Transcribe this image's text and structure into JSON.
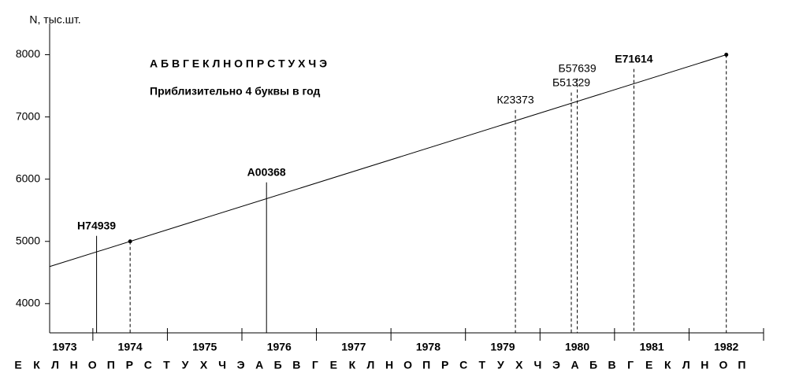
{
  "chart_data": {
    "type": "line",
    "ylabel": "N, тыс.шт.",
    "xlim": [
      1972.92,
      1982.5
    ],
    "ylim": [
      3530,
      8500
    ],
    "yticks": [
      4000,
      5000,
      6000,
      7000,
      8000
    ],
    "xticks": [
      1973,
      1974,
      1975,
      1976,
      1977,
      1978,
      1979,
      1980,
      1981,
      1982
    ],
    "xminorticks": [
      1973.5,
      1974.5,
      1975.5,
      1976.5,
      1977.5,
      1978.5,
      1979.5,
      1980.5,
      1981.5,
      1982.5
    ],
    "line": {
      "x": [
        1972.92,
        1982
      ],
      "y": [
        4595,
        8000
      ],
      "color": "#000000"
    },
    "points": {
      "x": [
        1974,
        1982
      ],
      "y": [
        5000,
        8000
      ],
      "color": "#000000"
    },
    "notes": [
      "А Б В Г Е К Л Н О П Р С Т У Х Ч Э",
      "Приблизительно 4 буквы в год"
    ],
    "annotations": [
      {
        "text": "Н74939",
        "x": 1973.55,
        "y": 5089,
        "bold": true,
        "dashed": false
      },
      {
        "text": "А00368",
        "x": 1975.83,
        "y": 5949,
        "bold": true,
        "dashed": false
      },
      {
        "text": "К23373",
        "x": 1979.17,
        "y": 7114,
        "bold": false,
        "dashed": true
      },
      {
        "text": "Б51329",
        "x": 1979.92,
        "y": 7392,
        "bold": false,
        "dashed": true
      },
      {
        "text": "Б57639",
        "x": 1980.0,
        "y": 7620,
        "bold": false,
        "dashed": true
      },
      {
        "text": "Е71614",
        "x": 1980.76,
        "y": 7772,
        "bold": true,
        "dashed": true
      }
    ],
    "letters": [
      "Е",
      "К",
      "Л",
      "Н",
      "О",
      "П",
      "Р",
      "С",
      "Т",
      "У",
      "Х",
      "Ч",
      "Э",
      "А",
      "Б",
      "В",
      "Г",
      "Е",
      "К",
      "Л",
      "Н",
      "О",
      "П",
      "Р",
      "С",
      "Т",
      "У",
      "Х",
      "Ч",
      "Э",
      "А",
      "Б",
      "В",
      "Г",
      "Е",
      "К",
      "Л",
      "Н",
      "О",
      "П"
    ]
  }
}
